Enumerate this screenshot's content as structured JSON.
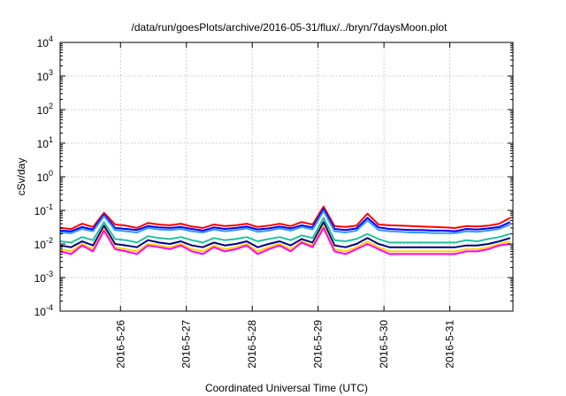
{
  "chart_data": {
    "type": "line",
    "title": "/data/run/goesPlots/archive/2016-05-31/flux/../bryn/7daysMoon.plot",
    "xlabel": "Coordinated Universal Time (UTC)",
    "ylabel": "cSv/day",
    "yscale": "log",
    "ylim": [
      0.0001,
      10000
    ],
    "xlim": [
      "2016-05-25T02:00",
      "2016-05-31T23:00"
    ],
    "grid": true,
    "legend": "none",
    "x_tick_labels": [
      "2016-5-26",
      "2016-5-27",
      "2016-5-28",
      "2016-5-29",
      "2016-5-30",
      "2016-5-31"
    ],
    "y_ticks": [
      {
        "base": "10",
        "exp": "-4"
      },
      {
        "base": "10",
        "exp": "-3"
      },
      {
        "base": "10",
        "exp": "-2"
      },
      {
        "base": "10",
        "exp": "-1"
      },
      {
        "base": "10",
        "exp": "0"
      },
      {
        "base": "10",
        "exp": "1"
      },
      {
        "base": "10",
        "exp": "2"
      },
      {
        "base": "10",
        "exp": "3"
      },
      {
        "base": "10",
        "exp": "4"
      }
    ],
    "x_days": [
      "2016-5-25 02:00",
      "2016-5-25 06:00",
      "2016-5-25 10:00",
      "2016-5-25 14:00",
      "2016-5-25 18:00",
      "2016-5-25 22:00",
      "2016-5-26 02:00",
      "2016-5-26 06:00",
      "2016-5-26 10:00",
      "2016-5-26 14:00",
      "2016-5-26 18:00",
      "2016-5-26 22:00",
      "2016-5-27 02:00",
      "2016-5-27 06:00",
      "2016-5-27 10:00",
      "2016-5-27 14:00",
      "2016-5-27 18:00",
      "2016-5-27 22:00",
      "2016-5-28 02:00",
      "2016-5-28 06:00",
      "2016-5-28 10:00",
      "2016-5-28 14:00",
      "2016-5-28 18:00",
      "2016-5-28 22:00",
      "2016-5-29 02:00",
      "2016-5-29 06:00",
      "2016-5-29 10:00",
      "2016-5-29 14:00",
      "2016-5-29 18:00",
      "2016-5-29 22:00",
      "2016-5-30 02:00",
      "2016-5-30 06:00",
      "2016-5-30 10:00",
      "2016-5-30 14:00",
      "2016-5-30 18:00",
      "2016-5-30 22:00",
      "2016-5-31 02:00",
      "2016-5-31 06:00",
      "2016-5-31 10:00",
      "2016-5-31 14:00",
      "2016-5-31 18:00",
      "2016-5-31 22:00"
    ],
    "series": [
      {
        "color": "#ff0000",
        "values": [
          0.03,
          0.028,
          0.04,
          0.032,
          0.085,
          0.038,
          0.035,
          0.03,
          0.042,
          0.038,
          0.036,
          0.04,
          0.033,
          0.03,
          0.038,
          0.034,
          0.036,
          0.04,
          0.032,
          0.035,
          0.04,
          0.034,
          0.045,
          0.038,
          0.13,
          0.034,
          0.032,
          0.035,
          0.08,
          0.038,
          0.036,
          0.035,
          0.034,
          0.033,
          0.032,
          0.031,
          0.03,
          0.034,
          0.033,
          0.035,
          0.04,
          0.06
        ]
      },
      {
        "color": "#0000ff",
        "values": [
          0.025,
          0.024,
          0.032,
          0.027,
          0.075,
          0.03,
          0.028,
          0.026,
          0.034,
          0.031,
          0.03,
          0.032,
          0.028,
          0.025,
          0.031,
          0.028,
          0.03,
          0.033,
          0.027,
          0.029,
          0.033,
          0.029,
          0.036,
          0.031,
          0.11,
          0.028,
          0.026,
          0.029,
          0.06,
          0.031,
          0.028,
          0.027,
          0.026,
          0.026,
          0.025,
          0.025,
          0.024,
          0.028,
          0.027,
          0.029,
          0.032,
          0.045
        ]
      },
      {
        "color": "#3399ff",
        "values": [
          0.022,
          0.021,
          0.028,
          0.024,
          0.068,
          0.026,
          0.024,
          0.022,
          0.03,
          0.027,
          0.026,
          0.028,
          0.024,
          0.022,
          0.027,
          0.024,
          0.026,
          0.029,
          0.023,
          0.025,
          0.029,
          0.025,
          0.032,
          0.027,
          0.095,
          0.024,
          0.022,
          0.025,
          0.05,
          0.026,
          0.024,
          0.023,
          0.022,
          0.022,
          0.021,
          0.021,
          0.021,
          0.024,
          0.023,
          0.025,
          0.028,
          0.038
        ]
      },
      {
        "color": "#22c0a0",
        "values": [
          0.012,
          0.011,
          0.016,
          0.013,
          0.045,
          0.014,
          0.013,
          0.011,
          0.017,
          0.015,
          0.014,
          0.016,
          0.013,
          0.011,
          0.015,
          0.013,
          0.014,
          0.016,
          0.012,
          0.014,
          0.016,
          0.013,
          0.018,
          0.015,
          0.06,
          0.013,
          0.012,
          0.014,
          0.02,
          0.014,
          0.011,
          0.011,
          0.011,
          0.011,
          0.011,
          0.011,
          0.011,
          0.013,
          0.012,
          0.014,
          0.016,
          0.02
        ]
      },
      {
        "color": "#000080",
        "values": [
          0.009,
          0.008,
          0.012,
          0.009,
          0.035,
          0.01,
          0.009,
          0.008,
          0.013,
          0.011,
          0.01,
          0.012,
          0.009,
          0.008,
          0.011,
          0.009,
          0.01,
          0.012,
          0.008,
          0.01,
          0.012,
          0.009,
          0.014,
          0.011,
          0.045,
          0.009,
          0.008,
          0.01,
          0.015,
          0.01,
          0.008,
          0.008,
          0.008,
          0.008,
          0.008,
          0.008,
          0.008,
          0.009,
          0.009,
          0.01,
          0.012,
          0.015
        ]
      },
      {
        "color": "#ffd400",
        "values": [
          0.007,
          0.006,
          0.01,
          0.007,
          0.028,
          0.008,
          0.007,
          0.006,
          0.01,
          0.009,
          0.008,
          0.01,
          0.007,
          0.006,
          0.009,
          0.007,
          0.008,
          0.01,
          0.006,
          0.008,
          0.01,
          0.007,
          0.012,
          0.009,
          0.035,
          0.007,
          0.006,
          0.008,
          0.012,
          0.008,
          0.006,
          0.006,
          0.006,
          0.006,
          0.006,
          0.006,
          0.006,
          0.007,
          0.007,
          0.008,
          0.01,
          0.012
        ]
      },
      {
        "color": "#ff00ff",
        "values": [
          0.006,
          0.005,
          0.009,
          0.006,
          0.025,
          0.007,
          0.006,
          0.005,
          0.009,
          0.008,
          0.007,
          0.009,
          0.006,
          0.005,
          0.008,
          0.006,
          0.007,
          0.009,
          0.005,
          0.007,
          0.009,
          0.006,
          0.011,
          0.008,
          0.03,
          0.006,
          0.005,
          0.007,
          0.01,
          0.007,
          0.005,
          0.005,
          0.005,
          0.005,
          0.005,
          0.005,
          0.005,
          0.006,
          0.006,
          0.007,
          0.009,
          0.01
        ]
      }
    ]
  }
}
